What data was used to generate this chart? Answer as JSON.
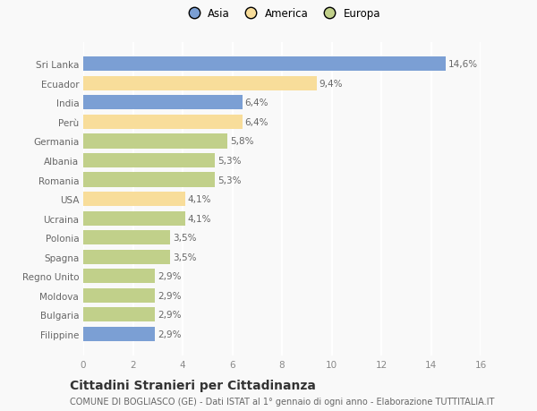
{
  "categories": [
    "Sri Lanka",
    "Ecuador",
    "India",
    "Perù",
    "Germania",
    "Albania",
    "Romania",
    "USA",
    "Ucraina",
    "Polonia",
    "Spagna",
    "Regno Unito",
    "Moldova",
    "Bulgaria",
    "Filippine"
  ],
  "values": [
    14.6,
    9.4,
    6.4,
    6.4,
    5.8,
    5.3,
    5.3,
    4.1,
    4.1,
    3.5,
    3.5,
    2.9,
    2.9,
    2.9,
    2.9
  ],
  "labels": [
    "14,6%",
    "9,4%",
    "6,4%",
    "6,4%",
    "5,8%",
    "5,3%",
    "5,3%",
    "4,1%",
    "4,1%",
    "3,5%",
    "3,5%",
    "2,9%",
    "2,9%",
    "2,9%",
    "2,9%"
  ],
  "continents": [
    "Asia",
    "America",
    "Asia",
    "America",
    "Europa",
    "Europa",
    "Europa",
    "America",
    "Europa",
    "Europa",
    "Europa",
    "Europa",
    "Europa",
    "Europa",
    "Asia"
  ],
  "colors": {
    "Asia": "#7b9fd4",
    "America": "#f8dd9a",
    "Europa": "#c1d08a"
  },
  "xlim": [
    0,
    16
  ],
  "xticks": [
    0,
    2,
    4,
    6,
    8,
    10,
    12,
    14,
    16
  ],
  "title": "Cittadini Stranieri per Cittadinanza",
  "subtitle": "COMUNE DI BOGLIASCO (GE) - Dati ISTAT al 1° gennaio di ogni anno - Elaborazione TUTTITALIA.IT",
  "background_color": "#f9f9f9",
  "grid_color": "#ffffff",
  "bar_height": 0.75,
  "label_fontsize": 7.5,
  "tick_fontsize": 7.5,
  "ytick_fontsize": 7.5,
  "title_fontsize": 10,
  "subtitle_fontsize": 7,
  "legend_fontsize": 8.5
}
